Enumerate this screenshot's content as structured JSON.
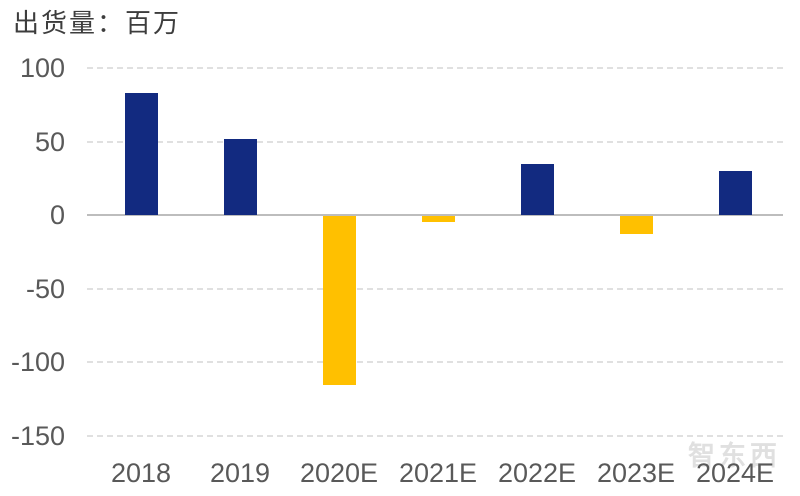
{
  "chart_data": {
    "type": "bar",
    "title": "出货量：百万",
    "categories": [
      "2018",
      "2019",
      "2020E",
      "2021E",
      "2022E",
      "2023E",
      "2024E"
    ],
    "values": [
      83,
      52,
      -115,
      -4,
      35,
      -12,
      30
    ],
    "bar_colors": [
      "#122a80",
      "#122a80",
      "#ffc000",
      "#ffc000",
      "#122a80",
      "#ffc000",
      "#122a80"
    ],
    "color_meaning": {
      "positive_bars": "#122a80",
      "negative_bars": "#ffc000"
    },
    "xlabel": "",
    "ylabel": "",
    "ylim": [
      -150,
      100
    ],
    "yticks": [
      100,
      50,
      0,
      -50,
      -100,
      -150
    ],
    "ytick_labels": [
      "100",
      "50",
      "0",
      "-50",
      "-100",
      "-150"
    ],
    "grid": "horizontal-dashed",
    "legend": null
  },
  "watermark": {
    "text": "智东西"
  },
  "colors": {
    "navy": "#122a80",
    "gold": "#ffc000",
    "axis_label": "#595959",
    "title_text": "#3d3d3d",
    "gridline": "#e0e0e0",
    "zero_line": "#bdbdbd",
    "background": "#ffffff"
  }
}
